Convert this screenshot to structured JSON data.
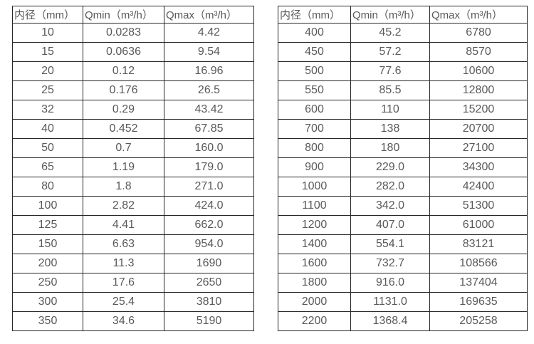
{
  "colors": {
    "background": "#ffffff",
    "border": "#262626",
    "text": "#595959"
  },
  "tables": [
    {
      "headers": [
        "内径（mm）",
        "Qmin（m³/h）",
        "Qmax（m³/h）"
      ],
      "rows": [
        [
          "10",
          "0.0283",
          "4.42"
        ],
        [
          "15",
          "0.0636",
          "9.54"
        ],
        [
          "20",
          "0.12",
          "16.96"
        ],
        [
          "25",
          "0.176",
          "26.5"
        ],
        [
          "32",
          "0.29",
          "43.42"
        ],
        [
          "40",
          "0.452",
          "67.85"
        ],
        [
          "50",
          "0.7",
          "160.0"
        ],
        [
          "65",
          "1.19",
          "179.0"
        ],
        [
          "80",
          "1.8",
          "271.0"
        ],
        [
          "100",
          "2.82",
          "424.0"
        ],
        [
          "125",
          "4.41",
          "662.0"
        ],
        [
          "150",
          "6.63",
          "954.0"
        ],
        [
          "200",
          "11.3",
          "1690"
        ],
        [
          "250",
          "17.6",
          "2650"
        ],
        [
          "300",
          "25.4",
          "3810"
        ],
        [
          "350",
          "34.6",
          "5190"
        ]
      ]
    },
    {
      "headers": [
        "内径（mm）",
        "Qmin（m³/h）",
        "Qmax（m³/h）"
      ],
      "rows": [
        [
          "400",
          "45.2",
          "6780"
        ],
        [
          "450",
          "57.2",
          "8570"
        ],
        [
          "500",
          "77.6",
          "10600"
        ],
        [
          "550",
          "85.5",
          "12800"
        ],
        [
          "600",
          "110",
          "15200"
        ],
        [
          "700",
          "138",
          "20700"
        ],
        [
          "800",
          "180",
          "27100"
        ],
        [
          "900",
          "229.0",
          "34300"
        ],
        [
          "1000",
          "282.0",
          "42400"
        ],
        [
          "1100",
          "342.0",
          "51300"
        ],
        [
          "1200",
          "407.0",
          "61000"
        ],
        [
          "1400",
          "554.1",
          "83121"
        ],
        [
          "1600",
          "732.7",
          "108566"
        ],
        [
          "1800",
          "916.0",
          "137404"
        ],
        [
          "2000",
          "1131.0",
          "169635"
        ],
        [
          "2200",
          "1368.4",
          "205258"
        ]
      ]
    }
  ]
}
